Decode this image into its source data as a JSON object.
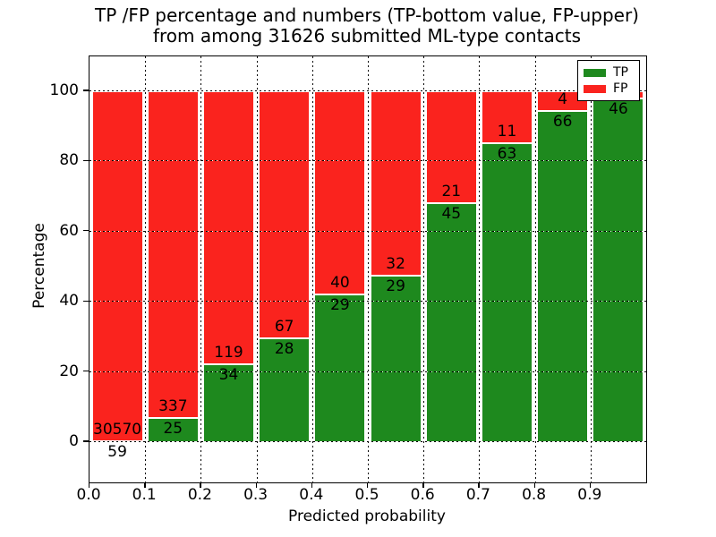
{
  "title": {
    "line1": "TP /FP percentage and numbers (TP-bottom value, FP-upper)",
    "line2": "from among 31626 submitted ML-type contacts"
  },
  "axes": {
    "xlabel": "Predicted probability",
    "ylabel": "Percentage",
    "x_tick_labels": [
      "0.0",
      "0.1",
      "0.2",
      "0.3",
      "0.4",
      "0.5",
      "0.6",
      "0.7",
      "0.8",
      "0.9"
    ],
    "y_tick_labels": [
      "0",
      "20",
      "40",
      "60",
      "80",
      "100"
    ],
    "y_tick_values": [
      0,
      20,
      40,
      60,
      80,
      100
    ]
  },
  "legend": {
    "items": [
      {
        "label": "TP",
        "color": "#1e891e"
      },
      {
        "label": "FP",
        "color": "#fa231e"
      }
    ]
  },
  "colors": {
    "tp_green": "#1e891e",
    "fp_red": "#fa231e",
    "axis": "#000000",
    "background": "#ffffff"
  },
  "chart_data": {
    "type": "bar",
    "stacked": true,
    "normalized_to_100_percent": true,
    "title": "TP /FP percentage and numbers (TP-bottom value, FP-upper) from among 31626 submitted ML-type contacts",
    "xlabel": "Predicted probability",
    "ylabel": "Percentage",
    "xlim": [
      0.0,
      1.0
    ],
    "ylim": [
      -11.5,
      110
    ],
    "grid": "dotted black, horizontal at 0/20/40/60/80/100 and vertical at each 0.1",
    "legend_position": "upper right",
    "bins": [
      "0.0-0.1",
      "0.1-0.2",
      "0.2-0.3",
      "0.3-0.4",
      "0.4-0.5",
      "0.5-0.6",
      "0.6-0.7",
      "0.7-0.8",
      "0.8-0.9",
      "0.9-1.0"
    ],
    "series": [
      {
        "name": "TP",
        "values": [
          59,
          25,
          34,
          28,
          29,
          29,
          45,
          63,
          66,
          46
        ]
      },
      {
        "name": "FP",
        "values": [
          30570,
          337,
          119,
          67,
          40,
          32,
          21,
          11,
          4,
          null
        ]
      }
    ],
    "tp_percent": [
      0.19,
      6.91,
      22.22,
      29.47,
      42.03,
      47.54,
      68.18,
      85.14,
      94.29,
      97.9
    ],
    "bar_labels": {
      "tp": [
        "59",
        "25",
        "34",
        "28",
        "29",
        "29",
        "45",
        "63",
        "66",
        "46"
      ],
      "fp": [
        "30570",
        "337",
        "119",
        "67",
        "40",
        "32",
        "21",
        "11",
        "4",
        ""
      ]
    },
    "note": "FP count label of last bin is hidden behind the legend"
  }
}
